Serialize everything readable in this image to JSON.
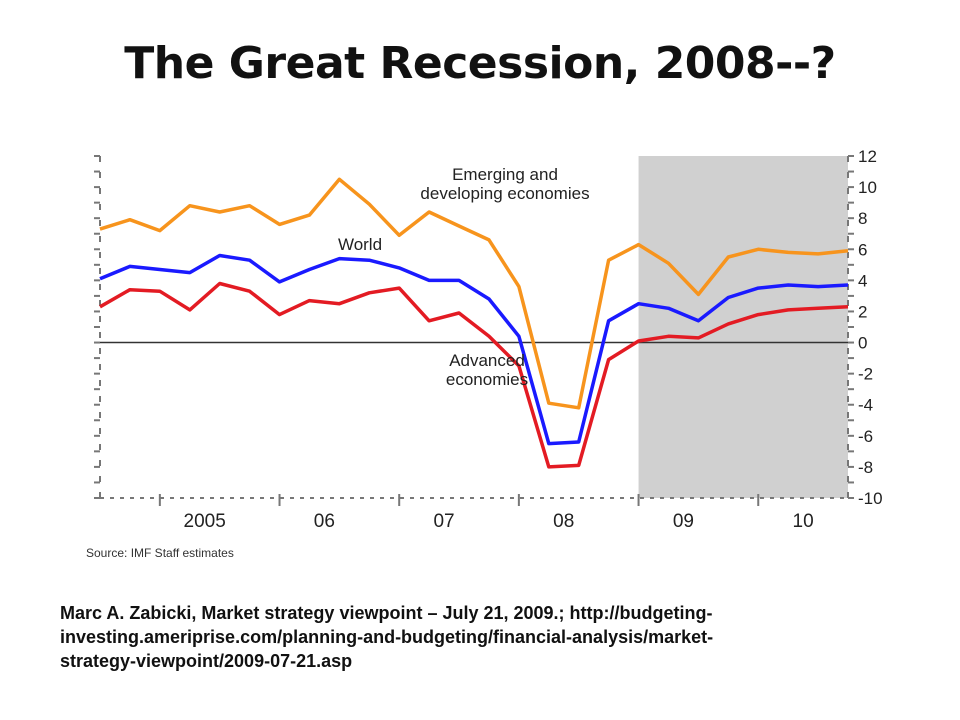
{
  "slide": {
    "title": "The Great Recession, 2008--?",
    "caption_lines": [
      "Marc A. Zabicki, Market strategy viewpoint – July 21, 2009.; http://budgeting-",
      "investing.ameriprise.com/planning-and-budgeting/financial-analysis/market-",
      "strategy-viewpoint/2009-07-21.asp"
    ]
  },
  "chart_data": {
    "type": "line",
    "title": "",
    "xlabel": "",
    "ylabel": "",
    "source": "Source: IMF Staff estimates",
    "x_tick_labels": [
      "2005",
      "06",
      "07",
      "08",
      "09",
      "10"
    ],
    "y_ticks": [
      12,
      10,
      8,
      6,
      4,
      2,
      0,
      -2,
      -4,
      -6,
      -8,
      -10
    ],
    "ylim": [
      -10,
      12
    ],
    "xlim": [
      2004.5,
      2010.75
    ],
    "grid": false,
    "zero_line": true,
    "shaded_region": {
      "x_start": 2009.0,
      "x_end": 2010.75,
      "color": "#d0d0d0"
    },
    "colors": {
      "emerging": "#f7941d",
      "world": "#1a1aff",
      "advanced": "#e31b23",
      "axis": "#777777"
    },
    "x": [
      2004.5,
      2004.75,
      2005.0,
      2005.25,
      2005.5,
      2005.75,
      2006.0,
      2006.25,
      2006.5,
      2006.75,
      2007.0,
      2007.25,
      2007.5,
      2007.75,
      2008.0,
      2008.25,
      2008.5,
      2008.75,
      2009.0,
      2009.25,
      2009.5,
      2009.75,
      2010.0,
      2010.25,
      2010.5,
      2010.75
    ],
    "series": [
      {
        "name": "Emerging and developing economies",
        "label_lines": [
          "Emerging and",
          "developing economies"
        ],
        "color": "#f7941d",
        "values": [
          7.3,
          7.9,
          7.2,
          8.8,
          8.4,
          8.8,
          7.6,
          8.2,
          10.5,
          8.9,
          6.9,
          8.4,
          7.5,
          6.6,
          3.6,
          -3.9,
          -4.2,
          5.3,
          6.3,
          5.1,
          3.1,
          5.5,
          6.0,
          5.8,
          5.7,
          5.9
        ]
      },
      {
        "name": "World",
        "label_lines": [
          "World"
        ],
        "color": "#1a1aff",
        "values": [
          4.1,
          4.9,
          4.7,
          4.5,
          5.6,
          5.3,
          3.9,
          4.7,
          5.4,
          5.3,
          4.8,
          4.0,
          4.0,
          2.8,
          0.4,
          -6.5,
          -6.4,
          1.4,
          2.5,
          2.2,
          1.4,
          2.9,
          3.5,
          3.7,
          3.6,
          3.7
        ]
      },
      {
        "name": "Advanced economies",
        "label_lines": [
          "Advanced",
          "economies"
        ],
        "color": "#e31b23",
        "values": [
          2.3,
          3.4,
          3.3,
          2.1,
          3.8,
          3.3,
          1.8,
          2.7,
          2.5,
          3.2,
          3.5,
          1.4,
          1.9,
          0.4,
          -1.5,
          -8.0,
          -7.9,
          -1.1,
          0.1,
          0.4,
          0.3,
          1.2,
          1.8,
          2.1,
          2.2,
          2.3
        ]
      }
    ]
  }
}
